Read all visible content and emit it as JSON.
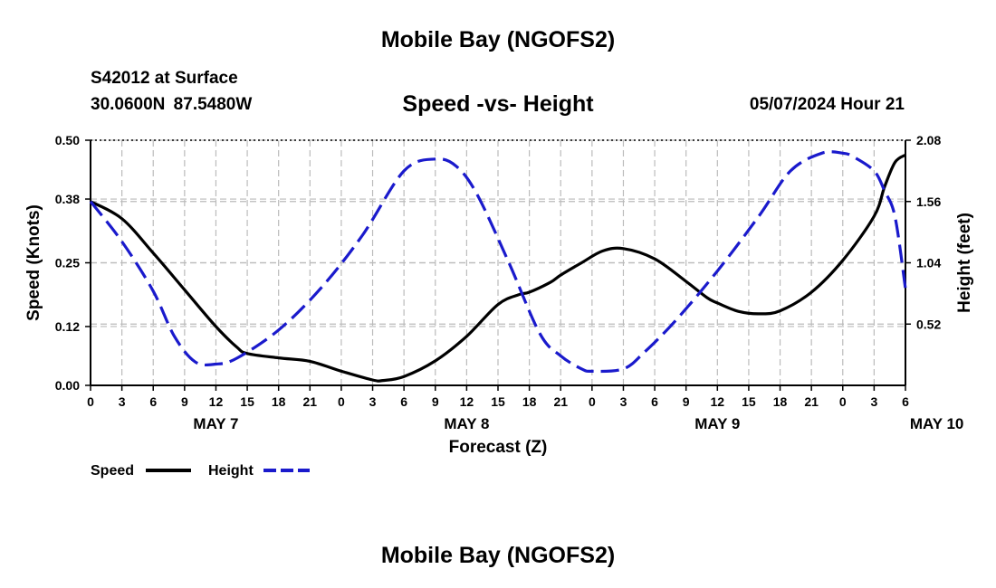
{
  "header": {
    "title": "Mobile Bay (NGOFS2)",
    "station": "S42012 at Surface",
    "coords": "30.0600N  87.5480W",
    "chart_title": "Speed -vs- Height",
    "run": "05/07/2024 Hour 21"
  },
  "footer": {
    "title": "Mobile Bay (NGOFS2)"
  },
  "colors": {
    "speed": "#000000",
    "height": "#1a1acc",
    "grid": "#bbbbbb"
  },
  "chart_data": {
    "type": "line",
    "title": "Speed -vs- Height",
    "xlabel": "Forecast (Z)",
    "ylabel": "Speed (Knots)",
    "y2label": "Height (feet)",
    "x_ticks": [
      "0",
      "3",
      "6",
      "9",
      "12",
      "15",
      "18",
      "21",
      "0",
      "3",
      "6",
      "9",
      "12",
      "15",
      "18",
      "21",
      "0",
      "3",
      "6",
      "9",
      "12",
      "15",
      "18",
      "21",
      "0",
      "3",
      "6"
    ],
    "day_labels": [
      {
        "label": "MAY 7",
        "hour": 12
      },
      {
        "label": "MAY 8",
        "hour": 36
      },
      {
        "label": "MAY 9",
        "hour": 60
      },
      {
        "label": "MAY 10",
        "hour": 81
      }
    ],
    "xlim": [
      0,
      78
    ],
    "ylim": [
      0,
      0.5
    ],
    "y_ticks": [
      "0.00",
      "0.12",
      "0.25",
      "0.38",
      "0.50"
    ],
    "y2lim": [
      0,
      2.08
    ],
    "y2_ticks": [
      "0.52",
      "1.04",
      "1.56",
      "2.08"
    ],
    "grid": true,
    "legend": "bottom-left",
    "series": [
      {
        "name": "Speed",
        "axis": "left",
        "style": "solid",
        "x": [
          0,
          3,
          6,
          9,
          12,
          14,
          15,
          18,
          21,
          24,
          27,
          28,
          30,
          33,
          36,
          39,
          41,
          42,
          44,
          45,
          47,
          49,
          51,
          54,
          57,
          59,
          60,
          62,
          64,
          66,
          69,
          72,
          75,
          76,
          77,
          78
        ],
        "y": [
          0.375,
          0.34,
          0.27,
          0.195,
          0.12,
          0.078,
          0.065,
          0.056,
          0.049,
          0.029,
          0.011,
          0.01,
          0.018,
          0.05,
          0.1,
          0.165,
          0.185,
          0.19,
          0.21,
          0.225,
          0.25,
          0.274,
          0.279,
          0.258,
          0.212,
          0.179,
          0.168,
          0.151,
          0.146,
          0.152,
          0.19,
          0.255,
          0.345,
          0.405,
          0.455,
          0.47
        ]
      },
      {
        "name": "Height",
        "axis": "right",
        "style": "dashed",
        "x": [
          0,
          3,
          6,
          8,
          10,
          12,
          14,
          18,
          22,
          26,
          30,
          33,
          35,
          37,
          40,
          43,
          45,
          47,
          48,
          51,
          53,
          56,
          60,
          64,
          67,
          70,
          72,
          73,
          75,
          76,
          77,
          78
        ],
        "y": [
          1.56,
          1.22,
          0.8,
          0.42,
          0.2,
          0.18,
          0.23,
          0.47,
          0.82,
          1.27,
          1.82,
          1.92,
          1.86,
          1.62,
          1.05,
          0.44,
          0.25,
          0.14,
          0.12,
          0.14,
          0.28,
          0.55,
          0.97,
          1.44,
          1.82,
          1.97,
          1.97,
          1.94,
          1.82,
          1.65,
          1.43,
          0.82
        ]
      }
    ]
  }
}
